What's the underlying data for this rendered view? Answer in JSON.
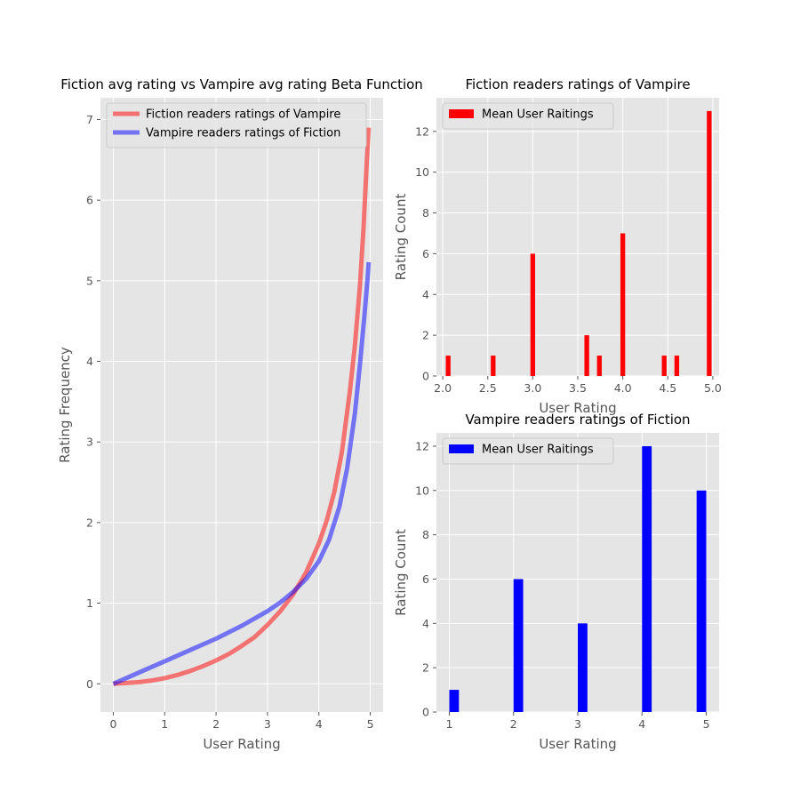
{
  "chart_data": [
    {
      "id": "left",
      "type": "line",
      "title": "Fiction avg rating vs Vampire avg rating Beta Function",
      "xlabel": "User Rating",
      "ylabel": "Rating Frequency",
      "xlim": [
        -0.25,
        5.25
      ],
      "ylim": [
        -0.35,
        7.27
      ],
      "xticks": [
        0,
        1,
        2,
        3,
        4,
        5
      ],
      "yticks": [
        0,
        1,
        2,
        3,
        4,
        5,
        6,
        7
      ],
      "grid": true,
      "legend": "upper-left",
      "series": [
        {
          "name": "Fiction readers ratings of Vampire",
          "color": "#FF0000",
          "x": [
            0,
            0.25,
            0.5,
            0.75,
            1,
            1.25,
            1.5,
            1.75,
            2,
            2.25,
            2.5,
            2.75,
            3,
            3.25,
            3.5,
            3.75,
            4,
            4.15,
            4.3,
            4.45,
            4.6,
            4.7,
            4.8,
            4.87,
            4.93,
            4.97
          ],
          "y": [
            0,
            0.01,
            0.02,
            0.04,
            0.07,
            0.11,
            0.16,
            0.22,
            0.29,
            0.37,
            0.47,
            0.58,
            0.73,
            0.9,
            1.11,
            1.38,
            1.74,
            2.02,
            2.38,
            2.88,
            3.61,
            4.19,
            4.95,
            5.66,
            6.45,
            6.9
          ]
        },
        {
          "name": "Vampire readers ratings of Fiction",
          "color": "#0000FF",
          "x": [
            0,
            0.5,
            1,
            1.5,
            2,
            2.5,
            3,
            3.25,
            3.5,
            3.75,
            4,
            4.2,
            4.4,
            4.55,
            4.7,
            4.8,
            4.88,
            4.95,
            4.97
          ],
          "y": [
            0,
            0.14,
            0.28,
            0.42,
            0.56,
            0.72,
            0.9,
            1.01,
            1.14,
            1.3,
            1.52,
            1.79,
            2.2,
            2.67,
            3.35,
            3.97,
            4.52,
            5.05,
            5.23
          ]
        }
      ]
    },
    {
      "id": "top-right",
      "type": "bar",
      "title": "Fiction readers ratings of Vampire",
      "xlabel": "User Rating",
      "ylabel": "Rating Count",
      "xlim": [
        1.93,
        5.07
      ],
      "ylim": [
        0,
        13.65
      ],
      "xticks": [
        "2.0",
        "2.5",
        "3.0",
        "3.5",
        "4.0",
        "4.5",
        "5.0"
      ],
      "yticks": [
        0,
        2,
        4,
        6,
        8,
        10,
        12
      ],
      "grid": true,
      "legend": "upper-left",
      "series": [
        {
          "name": "Mean User Raitings",
          "color": "#FF0000",
          "bin_width": 0.0525,
          "x": [
            2.06,
            2.56,
            3.0,
            3.6,
            3.74,
            4.0,
            4.46,
            4.6,
            4.96
          ],
          "values": [
            1,
            1,
            6,
            2,
            1,
            7,
            1,
            1,
            13
          ]
        }
      ]
    },
    {
      "id": "bottom-right",
      "type": "bar",
      "title": "Vampire readers ratings of Fiction",
      "xlabel": "User Rating",
      "ylabel": "Rating Count",
      "xlim": [
        0.8,
        5.2
      ],
      "ylim": [
        0,
        12.6
      ],
      "xticks": [
        1,
        2,
        3,
        4,
        5
      ],
      "yticks": [
        0,
        2,
        4,
        6,
        8,
        10,
        12
      ],
      "grid": true,
      "legend": "upper-left",
      "series": [
        {
          "name": "Mean User Raitings",
          "color": "#0000FF",
          "bin_width": 0.15,
          "x": [
            1.075,
            2.075,
            3.075,
            4.075,
            4.925
          ],
          "values": [
            1,
            6,
            4,
            12,
            10
          ]
        }
      ]
    }
  ]
}
